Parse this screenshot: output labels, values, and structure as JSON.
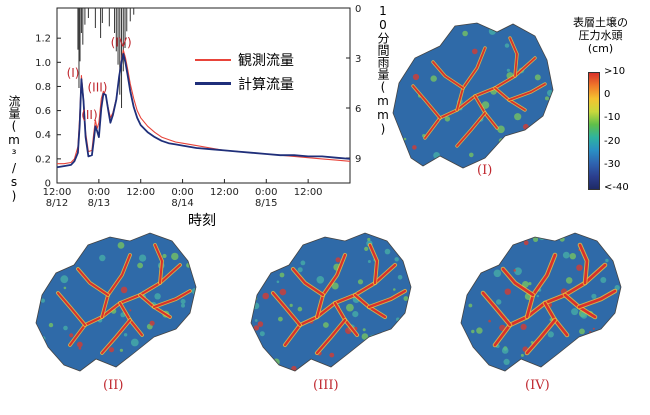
{
  "chart_data": {
    "type": "line",
    "title": "",
    "xlabel": "時刻",
    "ylabel": "流量(m³/s)",
    "y2label": "10分間雨量(mm)",
    "x_unit": "hours since 8/12 12:00",
    "xlim": [
      0,
      84
    ],
    "ylim": [
      0,
      1.45
    ],
    "y2lim": [
      0,
      10.5
    ],
    "y2_inverted": true,
    "x_ticks": [
      {
        "time": "12:00",
        "date": "8/12",
        "x": 0
      },
      {
        "time": "0:00",
        "date": "8/13",
        "x": 12
      },
      {
        "time": "12:00",
        "date": "",
        "x": 24
      },
      {
        "time": "0:00",
        "date": "8/14",
        "x": 36
      },
      {
        "time": "12:00",
        "date": "",
        "x": 48
      },
      {
        "time": "0:00",
        "date": "8/15",
        "x": 60
      },
      {
        "time": "12:00",
        "date": "",
        "x": 72
      }
    ],
    "y_ticks": [
      "0",
      "0.2",
      "0.4",
      "0.6",
      "0.8",
      "1.0",
      "1.2"
    ],
    "y2_ticks": [
      "0",
      "3",
      "6",
      "9"
    ],
    "legend_position": "top-right",
    "series": [
      {
        "name": "観測流量",
        "color": "#e8443a",
        "x": [
          0,
          2,
          4,
          5,
          6,
          6.5,
          7,
          7.6,
          8.2,
          9,
          10,
          10.5,
          11,
          11.5,
          12,
          12.7,
          13.3,
          14,
          14.7,
          15.3,
          16,
          17,
          17.8,
          18.5,
          19,
          19.6,
          20.2,
          21,
          22,
          23,
          24,
          26,
          28,
          30,
          32,
          34,
          36,
          40,
          44,
          48,
          52,
          56,
          60,
          64,
          68,
          72,
          76,
          80,
          84
        ],
        "y": [
          0.16,
          0.16,
          0.17,
          0.2,
          0.3,
          0.55,
          0.89,
          0.7,
          0.42,
          0.26,
          0.27,
          0.4,
          0.52,
          0.45,
          0.5,
          0.7,
          0.76,
          0.72,
          0.62,
          0.54,
          0.58,
          0.7,
          0.88,
          1.02,
          1.1,
          1.04,
          0.95,
          0.82,
          0.7,
          0.6,
          0.54,
          0.47,
          0.42,
          0.38,
          0.36,
          0.34,
          0.33,
          0.31,
          0.29,
          0.27,
          0.26,
          0.25,
          0.24,
          0.23,
          0.22,
          0.21,
          0.2,
          0.19,
          0.18
        ]
      },
      {
        "name": "計算流量",
        "color": "#1f2f7a",
        "x": [
          0,
          2,
          4,
          5,
          6,
          6.5,
          7,
          7.6,
          8.2,
          9,
          10,
          10.5,
          11,
          11.5,
          12,
          12.7,
          13.3,
          14,
          14.7,
          15.3,
          16,
          17,
          17.8,
          18.5,
          19,
          19.6,
          20.2,
          21,
          22,
          23,
          24,
          26,
          28,
          30,
          32,
          34,
          36,
          40,
          44,
          48,
          52,
          56,
          60,
          64,
          68,
          72,
          76,
          80,
          84
        ],
        "y": [
          0.13,
          0.14,
          0.15,
          0.18,
          0.25,
          0.48,
          0.86,
          0.68,
          0.38,
          0.22,
          0.23,
          0.34,
          0.47,
          0.43,
          0.38,
          0.62,
          0.74,
          0.73,
          0.6,
          0.5,
          0.56,
          0.69,
          0.88,
          1.0,
          1.07,
          1.0,
          0.9,
          0.76,
          0.63,
          0.54,
          0.48,
          0.42,
          0.38,
          0.35,
          0.33,
          0.32,
          0.31,
          0.29,
          0.28,
          0.27,
          0.26,
          0.25,
          0.24,
          0.23,
          0.23,
          0.22,
          0.22,
          0.21,
          0.2
        ]
      }
    ],
    "rainfall": {
      "x": [
        6,
        6.3,
        6.6,
        7,
        7.4,
        8,
        9,
        11,
        12.5,
        13,
        15,
        16.5,
        17,
        17.5,
        18,
        18.5,
        19,
        19.5,
        20,
        21,
        22
      ],
      "y": [
        2.5,
        4.8,
        3.2,
        1.5,
        2.2,
        1.0,
        0.6,
        1.2,
        1.8,
        0.9,
        1.1,
        1.5,
        2.6,
        3.4,
        5.2,
        6.0,
        3.8,
        2.4,
        1.4,
        0.8,
        0.4
      ]
    },
    "annotations": [
      {
        "text": "(I)",
        "x": 4.6,
        "y": 0.88
      },
      {
        "text": "(II)",
        "x": 9.3,
        "y": 0.53
      },
      {
        "text": "(III)",
        "x": 11.6,
        "y": 0.76
      },
      {
        "text": "(IV)",
        "x": 18.4,
        "y": 1.13
      }
    ]
  },
  "maps": {
    "title_lines": [
      "表層土壌の",
      "圧力水頭",
      "(cm)"
    ],
    "colorbar_ticks": [
      ">10",
      "0",
      "-10",
      "-20",
      "-30",
      "<-40"
    ],
    "colorbar_colors": [
      "#d9312a",
      "#f07a2a",
      "#f4c230",
      "#c9d83c",
      "#5fbf4a",
      "#2eb3a0",
      "#2a8fc4",
      "#2f64b0",
      "#2b3f8f",
      "#1f2a66"
    ],
    "panels": [
      {
        "label": "(I)",
        "wet": 0.15
      },
      {
        "label": "(II)",
        "wet": 0.4
      },
      {
        "label": "(III)",
        "wet": 0.6
      },
      {
        "label": "(IV)",
        "wet": 0.9
      }
    ]
  }
}
